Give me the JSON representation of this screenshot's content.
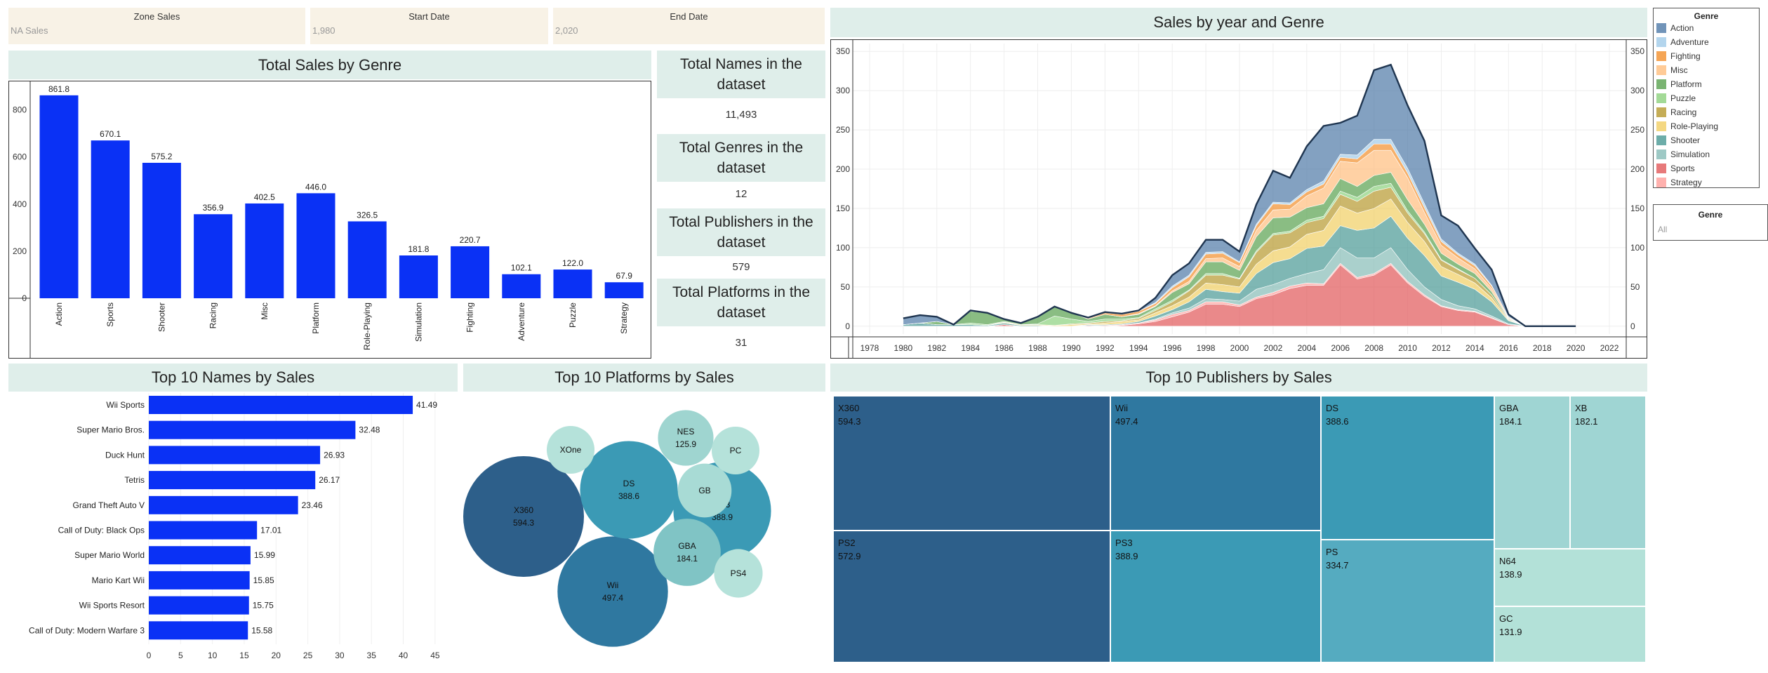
{
  "filters": {
    "zone": {
      "title": "Zone Sales",
      "value": "NA Sales"
    },
    "start": {
      "title": "Start Date",
      "value": "1,980"
    },
    "end": {
      "title": "End Date",
      "value": "2,020"
    }
  },
  "panels": {
    "total_by_genre": "Total Sales by Genre",
    "by_year_genre": "Sales by year and Genre",
    "top_names": "Top 10 Names by Sales",
    "top_platforms": "Top 10 Platforms by Sales",
    "top_publishers": "Top 10 Publishers by Sales"
  },
  "kpis": [
    {
      "title": "Total Names in the dataset",
      "value": "11,493"
    },
    {
      "title": "Total Genres in the dataset",
      "value": "12"
    },
    {
      "title": "Total Publishers in the dataset",
      "value": "579"
    },
    {
      "title": "Total Platforms in the dataset",
      "value": "31"
    }
  ],
  "legend": {
    "title": "Genre",
    "items": [
      {
        "label": "Action",
        "color": "#4e79a7"
      },
      {
        "label": "Adventure",
        "color": "#a0cbe8"
      },
      {
        "label": "Fighting",
        "color": "#f28e2b"
      },
      {
        "label": "Misc",
        "color": "#ffbe7d"
      },
      {
        "label": "Platform",
        "color": "#59a14f"
      },
      {
        "label": "Puzzle",
        "color": "#8cd17d"
      },
      {
        "label": "Racing",
        "color": "#b6992d"
      },
      {
        "label": "Role-Playing",
        "color": "#f1ce63"
      },
      {
        "label": "Shooter",
        "color": "#499894"
      },
      {
        "label": "Simulation",
        "color": "#86bcb6"
      },
      {
        "label": "Sports",
        "color": "#e15759"
      },
      {
        "label": "Strategy",
        "color": "#ff9d9a"
      }
    ]
  },
  "genre_filter": {
    "title": "Genre",
    "value": "All"
  },
  "chart_data": [
    {
      "type": "bar",
      "title": "Total Sales by Genre",
      "categories": [
        "Action",
        "Sports",
        "Shooter",
        "Racing",
        "Misc",
        "Platform",
        "Role-Playing",
        "Simulation",
        "Fighting",
        "Adventure",
        "Puzzle",
        "Strategy"
      ],
      "values": [
        861.8,
        670.1,
        575.2,
        356.9,
        402.5,
        446.0,
        326.5,
        181.8,
        220.7,
        102.1,
        122.0,
        67.9
      ],
      "value_labels": [
        "861.8",
        "670.1",
        "575.2",
        "356.9",
        "402.5",
        "446.0",
        "326.5",
        "181.8",
        "220.7",
        "102.1",
        "122.0",
        "67.9"
      ],
      "yticks": [
        "0",
        "200",
        "400",
        "600",
        "800"
      ],
      "ylim": [
        0,
        900
      ],
      "color": "#0a31f5"
    },
    {
      "type": "area",
      "title": "Sales by year and Genre",
      "x": [
        1980,
        1981,
        1982,
        1983,
        1984,
        1985,
        1986,
        1987,
        1988,
        1989,
        1990,
        1991,
        1992,
        1993,
        1994,
        1995,
        1996,
        1997,
        1998,
        1999,
        2000,
        2001,
        2002,
        2003,
        2004,
        2005,
        2006,
        2007,
        2008,
        2009,
        2010,
        2011,
        2012,
        2013,
        2014,
        2015,
        2016,
        2017,
        2018,
        2019,
        2020
      ],
      "xticks": [
        "1978",
        "1980",
        "1982",
        "1984",
        "1986",
        "1988",
        "1990",
        "1992",
        "1994",
        "1996",
        "1998",
        "2000",
        "2002",
        "2004",
        "2006",
        "2008",
        "2010",
        "2012",
        "2014",
        "2016",
        "2018",
        "2020",
        "2022"
      ],
      "yticks": [
        "0",
        "50",
        "100",
        "150",
        "200",
        "250",
        "300",
        "350"
      ],
      "xlim": [
        1977,
        2023
      ],
      "ylim": [
        -10,
        360
      ],
      "series": [
        {
          "name": "Sports",
          "values": [
            0,
            0,
            0,
            0,
            0,
            0,
            2,
            0,
            0,
            0,
            0,
            1,
            0,
            1,
            3,
            6,
            12,
            18,
            28,
            28,
            25,
            35,
            40,
            48,
            52,
            52,
            78,
            60,
            65,
            78,
            55,
            38,
            25,
            20,
            18,
            10,
            2,
            0,
            0,
            0,
            0
          ]
        },
        {
          "name": "Strategy",
          "values": [
            0,
            0,
            0,
            0,
            0,
            0,
            0,
            0,
            0,
            0,
            0,
            0,
            1,
            1,
            1,
            2,
            3,
            2,
            3,
            3,
            2,
            2,
            3,
            3,
            3,
            2,
            2,
            2,
            2,
            2,
            2,
            2,
            1,
            1,
            1,
            1,
            0,
            0,
            0,
            0,
            0
          ]
        },
        {
          "name": "Simulation",
          "values": [
            0,
            0,
            0,
            0,
            0,
            0,
            0,
            0,
            0,
            0,
            0,
            0,
            0,
            0,
            0,
            1,
            2,
            3,
            4,
            3,
            5,
            10,
            10,
            10,
            12,
            18,
            20,
            25,
            20,
            20,
            15,
            10,
            8,
            5,
            3,
            2,
            1,
            0,
            0,
            0,
            0
          ]
        },
        {
          "name": "Shooter",
          "values": [
            2,
            4,
            2,
            2,
            2,
            1,
            2,
            1,
            1,
            0,
            0,
            1,
            1,
            1,
            2,
            4,
            4,
            8,
            12,
            10,
            10,
            20,
            28,
            25,
            32,
            30,
            28,
            35,
            38,
            40,
            40,
            40,
            30,
            30,
            25,
            18,
            4,
            0,
            0,
            0,
            0
          ]
        },
        {
          "name": "Role-Playing",
          "values": [
            0,
            0,
            0,
            0,
            0,
            0,
            1,
            1,
            1,
            1,
            2,
            1,
            2,
            3,
            2,
            4,
            5,
            6,
            8,
            9,
            8,
            12,
            15,
            15,
            18,
            20,
            25,
            22,
            25,
            22,
            20,
            18,
            12,
            10,
            8,
            5,
            1,
            0,
            0,
            0,
            0
          ]
        },
        {
          "name": "Racing",
          "values": [
            0,
            0,
            0,
            0,
            0,
            0,
            0,
            0,
            0,
            0,
            1,
            1,
            2,
            1,
            2,
            3,
            5,
            8,
            10,
            12,
            10,
            15,
            20,
            18,
            15,
            15,
            15,
            15,
            22,
            15,
            12,
            10,
            8,
            6,
            6,
            4,
            1,
            0,
            0,
            0,
            0
          ]
        },
        {
          "name": "Puzzle",
          "values": [
            0,
            0,
            0,
            0,
            2,
            1,
            1,
            0,
            1,
            12,
            6,
            2,
            3,
            2,
            1,
            2,
            2,
            1,
            2,
            2,
            1,
            2,
            2,
            2,
            3,
            3,
            4,
            5,
            6,
            5,
            3,
            2,
            1,
            1,
            0,
            0,
            0,
            0,
            0,
            0,
            0
          ]
        },
        {
          "name": "Platform",
          "values": [
            0,
            0,
            4,
            0,
            15,
            15,
            3,
            2,
            8,
            12,
            8,
            3,
            6,
            3,
            4,
            3,
            10,
            8,
            15,
            15,
            10,
            18,
            20,
            18,
            16,
            16,
            16,
            14,
            14,
            14,
            14,
            10,
            8,
            6,
            6,
            4,
            1,
            0,
            0,
            0,
            0
          ]
        },
        {
          "name": "Misc",
          "values": [
            0,
            0,
            0,
            0,
            0,
            0,
            0,
            0,
            0,
            0,
            0,
            0,
            0,
            0,
            1,
            1,
            2,
            3,
            4,
            5,
            5,
            8,
            10,
            10,
            15,
            20,
            22,
            30,
            32,
            28,
            28,
            15,
            10,
            8,
            6,
            4,
            1,
            0,
            0,
            0,
            0
          ]
        },
        {
          "name": "Fighting",
          "values": [
            0,
            0,
            0,
            0,
            0,
            0,
            0,
            0,
            0,
            0,
            0,
            1,
            2,
            3,
            3,
            3,
            4,
            6,
            6,
            6,
            5,
            6,
            8,
            6,
            5,
            5,
            5,
            5,
            8,
            8,
            6,
            6,
            5,
            4,
            4,
            3,
            1,
            0,
            0,
            0,
            0
          ]
        },
        {
          "name": "Adventure",
          "values": [
            0,
            0,
            0,
            0,
            0,
            0,
            0,
            0,
            0,
            0,
            0,
            0,
            0,
            0,
            0,
            1,
            2,
            2,
            2,
            2,
            1,
            2,
            2,
            2,
            3,
            4,
            4,
            5,
            6,
            6,
            6,
            5,
            3,
            2,
            2,
            1,
            0,
            0,
            0,
            0,
            0
          ]
        },
        {
          "name": "Action",
          "values": [
            8,
            10,
            6,
            0,
            1,
            0,
            0,
            0,
            1,
            0,
            0,
            1,
            1,
            1,
            1,
            6,
            14,
            15,
            16,
            15,
            13,
            25,
            40,
            32,
            55,
            70,
            40,
            50,
            88,
            95,
            80,
            80,
            30,
            35,
            20,
            20,
            3,
            0,
            0,
            0,
            0
          ]
        }
      ]
    },
    {
      "type": "bar",
      "orientation": "horizontal",
      "title": "Top 10 Names by Sales",
      "categories": [
        "Wii Sports",
        "Super Mario Bros.",
        "Duck Hunt",
        "Tetris",
        "Grand Theft Auto V",
        "Call of Duty: Black Ops",
        "Super Mario World",
        "Mario Kart Wii",
        "Wii Sports Resort",
        "Call of Duty: Modern Warfare 3"
      ],
      "values": [
        41.49,
        32.48,
        26.93,
        26.17,
        23.46,
        17.01,
        15.99,
        15.85,
        15.75,
        15.58
      ],
      "value_labels": [
        "41.49",
        "32.48",
        "26.93",
        "26.17",
        "23.46",
        "17.01",
        "15.99",
        "15.85",
        "15.75",
        "15.58"
      ],
      "xticks": [
        "0",
        "5",
        "10",
        "15",
        "20",
        "25",
        "30",
        "35",
        "40",
        "45"
      ],
      "xlim": [
        0,
        47
      ],
      "color": "#0a31f5"
    },
    {
      "type": "bubble",
      "title": "Top 10 Platforms by Sales",
      "items": [
        {
          "label": "X360",
          "value": 594.3,
          "value_label": "594.3",
          "show_value": true,
          "color": "#2d5f8a"
        },
        {
          "label": "Wii",
          "value": 497.4,
          "value_label": "497.4",
          "show_value": true,
          "color": "#2f78a0"
        },
        {
          "label": "DS",
          "value": 388.6,
          "value_label": "388.6",
          "show_value": true,
          "color": "#3b9ab5"
        },
        {
          "label": "PS3",
          "value": 388.9,
          "value_label": "388.9",
          "show_value": true,
          "color": "#3b9ab5"
        },
        {
          "label": "GBA",
          "value": 184.1,
          "value_label": "184.1",
          "show_value": true,
          "color": "#80c4c5"
        },
        {
          "label": "NES",
          "value": 125.9,
          "value_label": "125.9",
          "show_value": true,
          "color": "#9fd5d0"
        },
        {
          "label": "GB",
          "value": 118.0,
          "value_label": "",
          "show_value": false,
          "color": "#a8dbd5"
        },
        {
          "label": "PC",
          "value": 93.0,
          "value_label": "",
          "show_value": false,
          "color": "#b5e2da"
        },
        {
          "label": "XOne",
          "value": 93.0,
          "value_label": "",
          "show_value": false,
          "color": "#b5e2da"
        },
        {
          "label": "PS4",
          "value": 96.0,
          "value_label": "",
          "show_value": false,
          "color": "#b5e2da"
        }
      ]
    },
    {
      "type": "treemap",
      "title": "Top 10 Publishers by Sales",
      "items": [
        {
          "label": "X360",
          "value_label": "594.3",
          "color": "#2d5f8a"
        },
        {
          "label": "PS2",
          "value_label": "572.9",
          "color": "#2d5f8a"
        },
        {
          "label": "Wii",
          "value_label": "497.4",
          "color": "#2f78a0"
        },
        {
          "label": "PS3",
          "value_label": "388.9",
          "color": "#3b9ab5"
        },
        {
          "label": "DS",
          "value_label": "388.6",
          "color": "#3b9ab5"
        },
        {
          "label": "PS",
          "value_label": "334.7",
          "color": "#55abc0"
        },
        {
          "label": "GBA",
          "value_label": "184.1",
          "color": "#9fd5d3"
        },
        {
          "label": "XB",
          "value_label": "182.1",
          "color": "#9fd5d3"
        },
        {
          "label": "N64",
          "value_label": "138.9",
          "color": "#b3e1d8"
        },
        {
          "label": "GC",
          "value_label": "131.9",
          "color": "#b3e1d8"
        }
      ]
    }
  ]
}
